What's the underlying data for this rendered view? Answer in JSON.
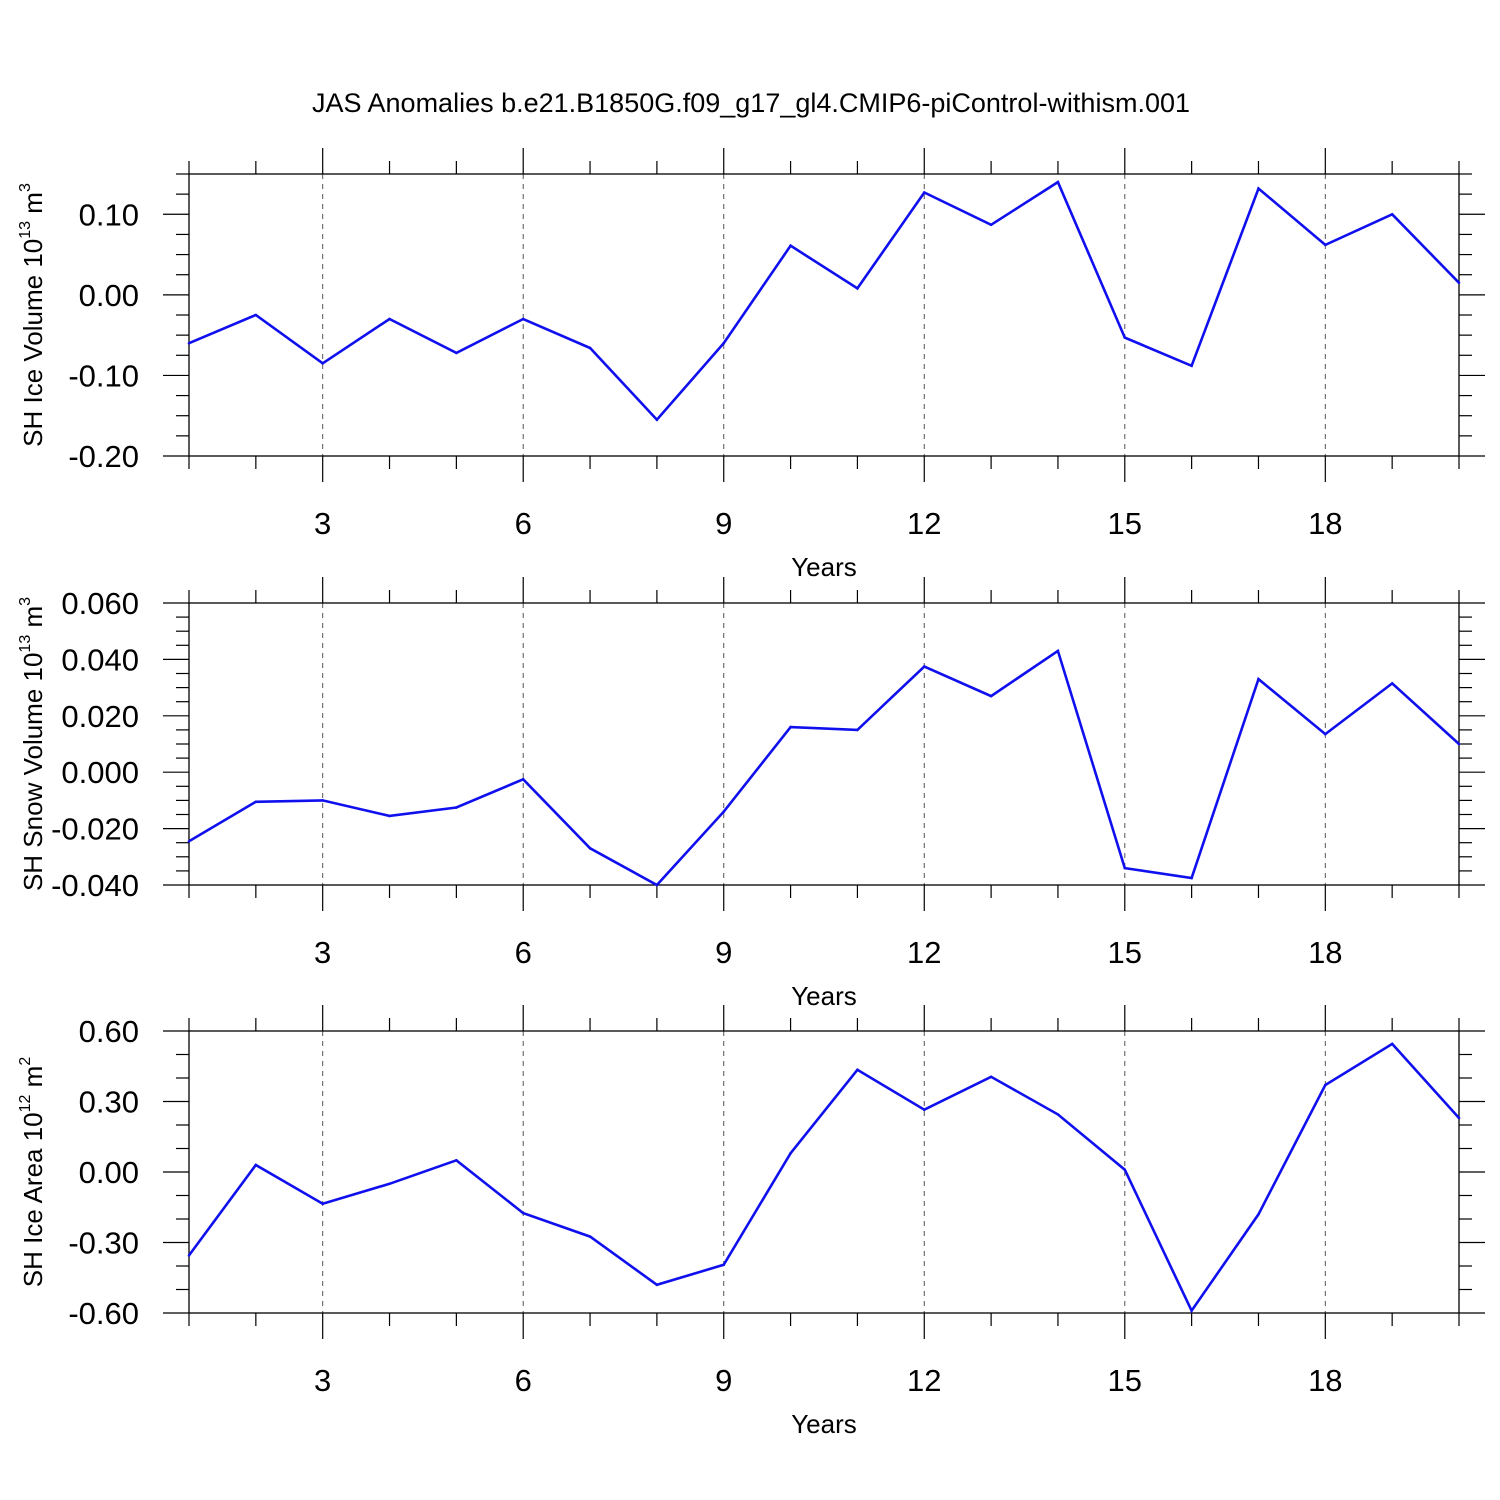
{
  "title": "JAS Anomalies b.e21.B1850G.f09_g17_gl4.CMIP6-piControl-withism.001",
  "chart_data": [
    {
      "type": "line",
      "name": "sh-ice-volume",
      "title": "",
      "xlabel": "Years",
      "ylabel_text": "SH Ice Volume 10",
      "ylabel_exp": "13",
      "ylabel_unit": " m",
      "ylabel_unit_exp": "3",
      "x": [
        1,
        2,
        3,
        4,
        5,
        6,
        7,
        8,
        9,
        10,
        11,
        12,
        13,
        14,
        15,
        16,
        17,
        18,
        19,
        20
      ],
      "values": [
        -0.06,
        -0.025,
        -0.085,
        -0.03,
        -0.072,
        -0.03,
        -0.066,
        -0.155,
        -0.06,
        0.061,
        0.008,
        0.127,
        0.087,
        0.14,
        -0.053,
        -0.088,
        0.132,
        0.062,
        0.1,
        0.015
      ],
      "xlim": [
        1,
        20
      ],
      "ylim": [
        -0.2,
        0.15
      ],
      "xticks": [
        3,
        6,
        9,
        12,
        15,
        18
      ],
      "xtick_labels": [
        "3",
        "6",
        "9",
        "12",
        "15",
        "18"
      ],
      "yticks": [
        -0.2,
        -0.1,
        0.0,
        0.1
      ],
      "ytick_labels": [
        "-0.20",
        "-0.10",
        "0.00",
        "0.10"
      ],
      "y_minor_step": 0.025,
      "grid": "vertical-dashed",
      "line_color": "#1010ee"
    },
    {
      "type": "line",
      "name": "sh-snow-volume",
      "title": "",
      "xlabel": "Years",
      "ylabel_text": "SH Snow Volume 10",
      "ylabel_exp": "13",
      "ylabel_unit": " m",
      "ylabel_unit_exp": "3",
      "x": [
        1,
        2,
        3,
        4,
        5,
        6,
        7,
        8,
        9,
        10,
        11,
        12,
        13,
        14,
        15,
        16,
        17,
        18,
        19,
        20
      ],
      "values": [
        -0.0245,
        -0.0105,
        -0.01,
        -0.0155,
        -0.0125,
        -0.0025,
        -0.027,
        -0.04,
        -0.014,
        0.016,
        0.015,
        0.0375,
        0.027,
        0.043,
        -0.034,
        -0.0375,
        0.033,
        0.0135,
        0.0315,
        0.01
      ],
      "xlim": [
        1,
        20
      ],
      "ylim": [
        -0.04,
        0.06
      ],
      "xticks": [
        3,
        6,
        9,
        12,
        15,
        18
      ],
      "xtick_labels": [
        "3",
        "6",
        "9",
        "12",
        "15",
        "18"
      ],
      "yticks": [
        -0.04,
        -0.02,
        0.0,
        0.02,
        0.04,
        0.06
      ],
      "ytick_labels": [
        "-0.040",
        "-0.020",
        "0.000",
        "0.020",
        "0.040",
        "0.060"
      ],
      "y_minor_step": 0.005,
      "grid": "vertical-dashed",
      "line_color": "#1010ee"
    },
    {
      "type": "line",
      "name": "sh-ice-area",
      "title": "",
      "xlabel": "Years",
      "ylabel_text": "SH Ice Area 10",
      "ylabel_exp": "12",
      "ylabel_unit": " m",
      "ylabel_unit_exp": "2",
      "x": [
        1,
        2,
        3,
        4,
        5,
        6,
        7,
        8,
        9,
        10,
        11,
        12,
        13,
        14,
        15,
        16,
        17,
        18,
        19,
        20
      ],
      "values": [
        -0.355,
        0.03,
        -0.135,
        -0.05,
        0.05,
        -0.175,
        -0.275,
        -0.48,
        -0.395,
        0.08,
        0.435,
        0.265,
        0.405,
        0.245,
        0.01,
        -0.59,
        -0.18,
        0.37,
        0.545,
        0.23
      ],
      "xlim": [
        1,
        20
      ],
      "ylim": [
        -0.6,
        0.6
      ],
      "xticks": [
        3,
        6,
        9,
        12,
        15,
        18
      ],
      "xtick_labels": [
        "3",
        "6",
        "9",
        "12",
        "15",
        "18"
      ],
      "yticks": [
        -0.6,
        -0.3,
        0.0,
        0.3,
        0.6
      ],
      "ytick_labels": [
        "-0.60",
        "-0.30",
        "0.00",
        "0.30",
        "0.60"
      ],
      "y_minor_step": 0.1,
      "grid": "vertical-dashed",
      "line_color": "#1010ee"
    }
  ]
}
